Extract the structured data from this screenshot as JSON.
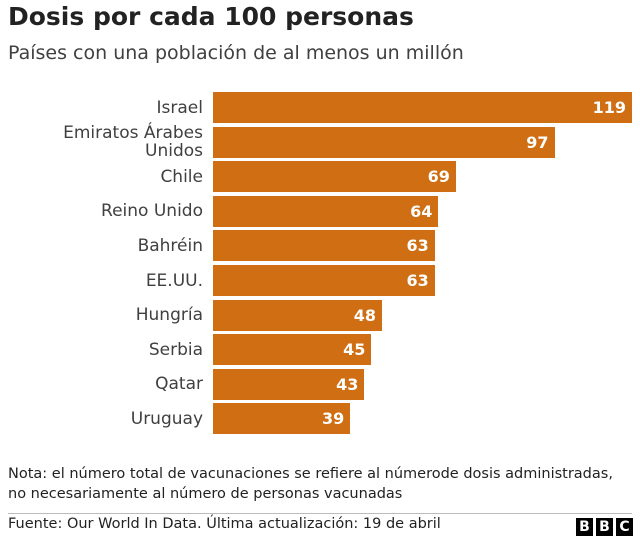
{
  "chart_data": {
    "type": "bar",
    "orientation": "horizontal",
    "title": "Dosis por cada 100 personas",
    "subtitle": "Países con una población de al menos un millón",
    "categories": [
      "Israel",
      "Emiratos Árabes Unidos",
      "Chile",
      "Reino Unido",
      "Bahréin",
      "EE.UU.",
      "Hungría",
      "Serbia",
      "Qatar",
      "Uruguay"
    ],
    "values": [
      119,
      97,
      69,
      64,
      63,
      63,
      48,
      45,
      43,
      39
    ],
    "color": "#cf6e12",
    "note": [
      "Nota: el número total de vacunaciones se refiere al númerode dosis administradas,",
      "no necesariamente al número de personas vacunadas"
    ],
    "source": "Fuente: Our World In Data. Última actualización: 19 de abril",
    "logo_letters": [
      "B",
      "B",
      "C"
    ]
  }
}
